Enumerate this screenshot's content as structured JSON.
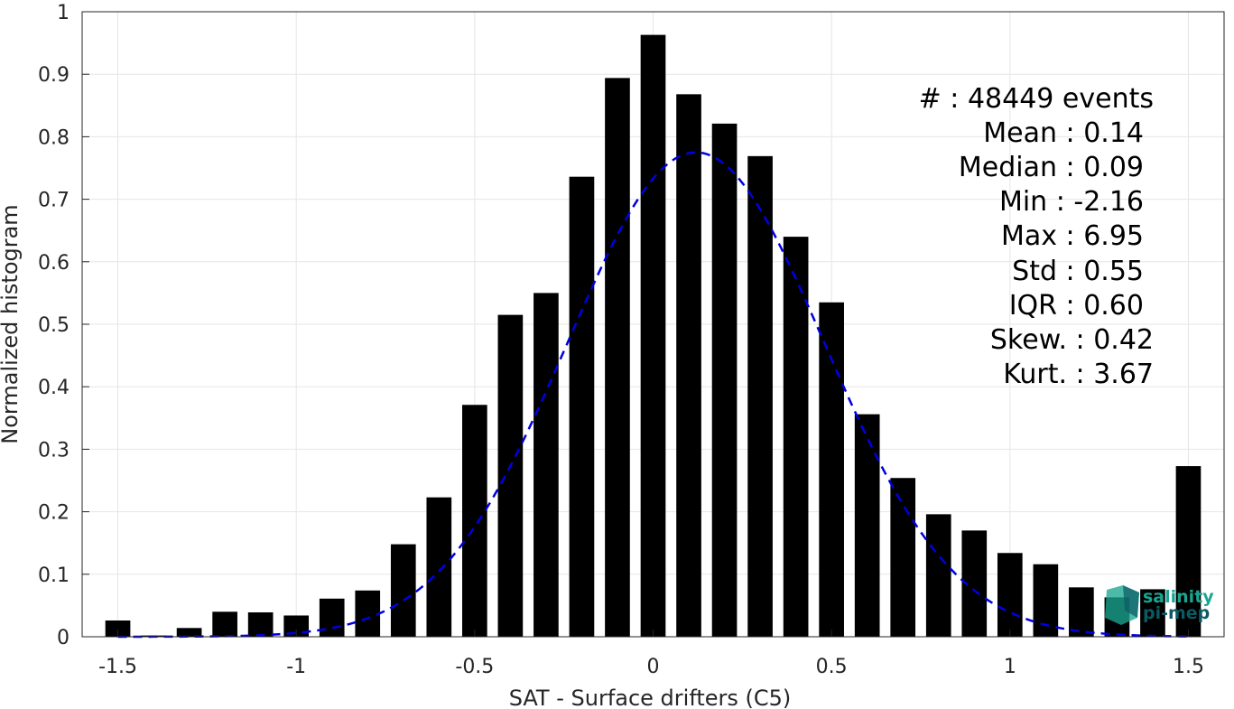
{
  "chart_data": {
    "type": "bar",
    "xlabel": "SAT - Surface drifters (C5)",
    "ylabel": "Normalized histogram",
    "xlim": [
      -1.6,
      1.6
    ],
    "ylim": [
      0,
      1
    ],
    "xticks": [
      -1.5,
      -1,
      -0.5,
      0,
      0.5,
      1,
      1.5
    ],
    "xtick_labels": [
      "-1.5",
      "-1",
      "-0.5",
      "0",
      "0.5",
      "1",
      "1.5"
    ],
    "yticks": [
      0,
      0.1,
      0.2,
      0.3,
      0.4,
      0.5,
      0.6,
      0.7,
      0.8,
      0.9,
      1
    ],
    "ytick_labels": [
      "0",
      "0.1",
      "0.2",
      "0.3",
      "0.4",
      "0.5",
      "0.6",
      "0.7",
      "0.8",
      "0.9",
      "1"
    ],
    "grid": true,
    "bar_color": "#000000",
    "bars": {
      "x": [
        -1.5,
        -1.4,
        -1.3,
        -1.2,
        -1.1,
        -1.0,
        -0.9,
        -0.8,
        -0.7,
        -0.6,
        -0.5,
        -0.4,
        -0.3,
        -0.2,
        -0.1,
        0.0,
        0.1,
        0.2,
        0.3,
        0.4,
        0.5,
        0.6,
        0.7,
        0.8,
        0.9,
        1.0,
        1.1,
        1.2,
        1.3,
        1.4,
        1.5
      ],
      "values": [
        0.026,
        0.002,
        0.014,
        0.04,
        0.039,
        0.034,
        0.061,
        0.074,
        0.148,
        0.223,
        0.371,
        0.515,
        0.55,
        0.736,
        0.894,
        0.963,
        0.868,
        0.821,
        0.769,
        0.64,
        0.535,
        0.356,
        0.254,
        0.196,
        0.17,
        0.134,
        0.116,
        0.079,
        0.063,
        0.076,
        0.273
      ],
      "width": 0.07
    },
    "fit_curve": {
      "type": "gaussian",
      "style": "dashed",
      "color": "#0000e0",
      "mean": 0.12,
      "std": 0.36,
      "peak": 0.775,
      "x_range": [
        -1.5,
        1.5
      ]
    }
  },
  "stats": [
    "#  : 48449 events",
    "Mean : 0.14",
    "Median : 0.09",
    "Min : -2.16",
    "Max : 6.95",
    "Std : 0.55",
    "IQR : 0.60",
    "Skew. : 0.42",
    "Kurt. : 3.67"
  ],
  "logo": {
    "line1": "salinity",
    "line2": "pi-mep",
    "color": "#1aa591",
    "dark_color": "#0d5a64"
  }
}
